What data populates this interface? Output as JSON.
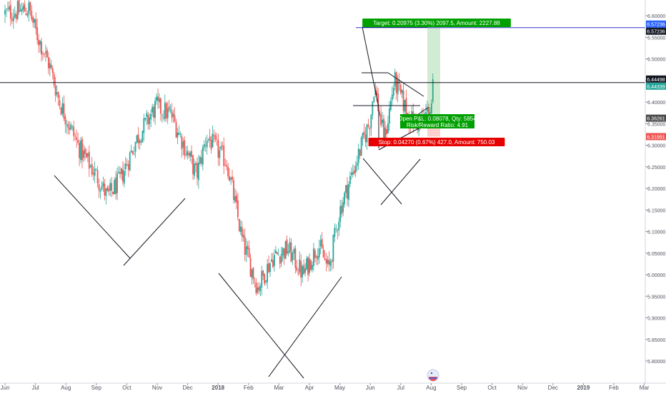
{
  "chart_data": {
    "type": "candlestick",
    "interval": "daily",
    "xaxis_labels": [
      "Jun",
      "Jul",
      "Aug",
      "Sep",
      "Oct",
      "Nov",
      "Dec",
      "2018",
      "Feb",
      "Mar",
      "Apr",
      "May",
      "Jun",
      "Jul",
      "Aug",
      "Sep",
      "Oct",
      "Nov",
      "Dec",
      "2019",
      "Feb",
      "Mar"
    ],
    "ylim": [
      5.77,
      6.615
    ],
    "yaxis_ticks": [
      "6.60000",
      "6.55000",
      "6.50000",
      "6.45000",
      "6.40000",
      "6.35000",
      "6.30000",
      "6.25000",
      "6.20000",
      "6.15000",
      "6.10000",
      "6.05000",
      "6.00000",
      "5.95000",
      "5.90000",
      "5.85000",
      "5.80000"
    ],
    "ohlc_keypoints": [
      {
        "date": "2017-06-01",
        "price": 6.605
      },
      {
        "date": "2017-06-25",
        "price": 6.615
      },
      {
        "date": "2017-07-01",
        "price": 6.565
      },
      {
        "date": "2017-07-15",
        "price": 6.485
      },
      {
        "date": "2017-07-25",
        "price": 6.4
      },
      {
        "date": "2017-08-15",
        "price": 6.29
      },
      {
        "date": "2017-09-01",
        "price": 6.23
      },
      {
        "date": "2017-09-12",
        "price": 6.18
      },
      {
        "date": "2017-09-25",
        "price": 6.22
      },
      {
        "date": "2017-10-10",
        "price": 6.31
      },
      {
        "date": "2017-10-30",
        "price": 6.39
      },
      {
        "date": "2017-11-15",
        "price": 6.37
      },
      {
        "date": "2017-12-01",
        "price": 6.28
      },
      {
        "date": "2017-12-10",
        "price": 6.23
      },
      {
        "date": "2017-12-20",
        "price": 6.32
      },
      {
        "date": "2018-01-10",
        "price": 6.26
      },
      {
        "date": "2018-01-25",
        "price": 6.08
      },
      {
        "date": "2018-02-10",
        "price": 5.97
      },
      {
        "date": "2018-02-25",
        "price": 6.04
      },
      {
        "date": "2018-03-10",
        "price": 6.06
      },
      {
        "date": "2018-03-25",
        "price": 6.0
      },
      {
        "date": "2018-04-10",
        "price": 6.07
      },
      {
        "date": "2018-04-20",
        "price": 6.01
      },
      {
        "date": "2018-05-01",
        "price": 6.15
      },
      {
        "date": "2018-05-20",
        "price": 6.28
      },
      {
        "date": "2018-06-01",
        "price": 6.36
      },
      {
        "date": "2018-06-05",
        "price": 6.44
      },
      {
        "date": "2018-06-15",
        "price": 6.31
      },
      {
        "date": "2018-06-25",
        "price": 6.45
      },
      {
        "date": "2018-07-10",
        "price": 6.36
      },
      {
        "date": "2018-07-20",
        "price": 6.35
      },
      {
        "date": "2018-08-01",
        "price": 6.39
      },
      {
        "date": "2018-08-03",
        "price": 6.443
      }
    ],
    "horizontal_lines": [
      {
        "price": 6.44498,
        "label": "6.44498",
        "color": "#131722"
      },
      {
        "price": 6.57236,
        "label": "6.57236",
        "color": "#3333cc"
      }
    ],
    "price_labels": [
      {
        "text": "6.60000",
        "color": "#ffffff"
      },
      {
        "text": "6.57236",
        "color": "#2962ff"
      },
      {
        "text": "6.57236",
        "color": "#131722"
      },
      {
        "text": "6.44498",
        "color": "#131722"
      },
      {
        "text": "6.44339",
        "color": "#26a69a"
      },
      {
        "text": "6.36261",
        "color": "#4a4a4a"
      },
      {
        "text": "6.31991",
        "color": "#ef5350"
      }
    ],
    "position": {
      "target_label": "Target: 0.20975 (3.30%) 2097.5, Amount: 2227.88",
      "open_label_1": "Open P&L: 0.08078, Qty: 5854",
      "open_label_2": "Risk/Reward Ratio: 4.91",
      "stop_label": "Stop: 0.04270 (0.67%) 427.0, Amount: 750.03",
      "entry_price": 6.36261,
      "target_price": 6.57236,
      "stop_price": 6.31991
    },
    "colors": {
      "up": "#26a69a",
      "down": "#ef5350",
      "target": "#00a000",
      "stop": "#e60000",
      "hline_blue": "#3333cc",
      "drawings": "#131722"
    },
    "watermark_logo": "tradingview-logo"
  }
}
